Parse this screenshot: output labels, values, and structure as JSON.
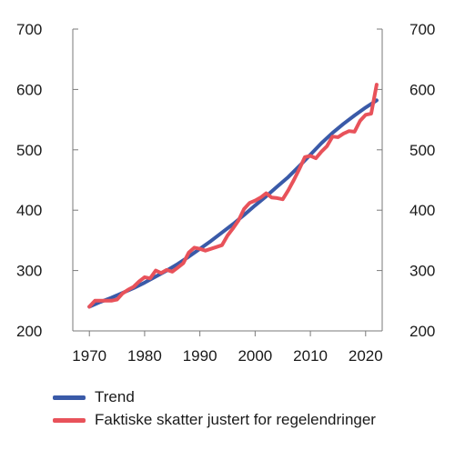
{
  "chart_data": {
    "type": "line",
    "xlim": [
      1967,
      2023
    ],
    "ylim": [
      200,
      700
    ],
    "x_ticks": [
      1970,
      1980,
      1990,
      2000,
      2010,
      2020
    ],
    "y_ticks": [
      200,
      300,
      400,
      500,
      600,
      700
    ],
    "y_axes": "left and right, identical scales",
    "grid": false,
    "legend_position": "bottom-left, below plot",
    "series": [
      {
        "name": "Trend",
        "color": "#3a5aa8",
        "x": [
          1970,
          1972,
          1974,
          1976,
          1978,
          1980,
          1982,
          1984,
          1986,
          1988,
          1990,
          1992,
          1994,
          1996,
          1998,
          2000,
          2002,
          2004,
          2006,
          2008,
          2010,
          2012,
          2014,
          2016,
          2018,
          2020,
          2022
        ],
        "y": [
          240,
          248,
          255,
          263,
          271,
          280,
          290,
          300,
          311,
          323,
          336,
          349,
          363,
          377,
          392,
          408,
          423,
          439,
          455,
          473,
          492,
          511,
          528,
          543,
          557,
          570,
          582
        ]
      },
      {
        "name": "Faktiske skatter justert for regelendringer",
        "color": "#e8525a",
        "x": [
          1970,
          1971,
          1972,
          1973,
          1974,
          1975,
          1976,
          1977,
          1978,
          1979,
          1980,
          1981,
          1982,
          1983,
          1984,
          1985,
          1986,
          1987,
          1988,
          1989,
          1990,
          1991,
          1992,
          1993,
          1994,
          1995,
          1996,
          1997,
          1998,
          1999,
          2000,
          2001,
          2002,
          2003,
          2004,
          2005,
          2006,
          2007,
          2008,
          2009,
          2010,
          2011,
          2012,
          2013,
          2014,
          2015,
          2016,
          2017,
          2018,
          2019,
          2020,
          2021,
          2022
        ],
        "y": [
          240,
          250,
          250,
          250,
          250,
          252,
          262,
          268,
          273,
          282,
          289,
          287,
          300,
          296,
          301,
          298,
          305,
          312,
          330,
          338,
          336,
          333,
          336,
          339,
          342,
          358,
          370,
          383,
          402,
          412,
          416,
          421,
          428,
          421,
          420,
          418,
          433,
          450,
          468,
          488,
          490,
          486,
          497,
          506,
          522,
          521,
          527,
          531,
          530,
          548,
          558,
          560,
          608
        ]
      }
    ]
  },
  "legend": {
    "items": [
      {
        "label": "Trend",
        "color": "#3a5aa8"
      },
      {
        "label": "Faktiske skatter justert for regelendringer",
        "color": "#e8525a"
      }
    ]
  }
}
